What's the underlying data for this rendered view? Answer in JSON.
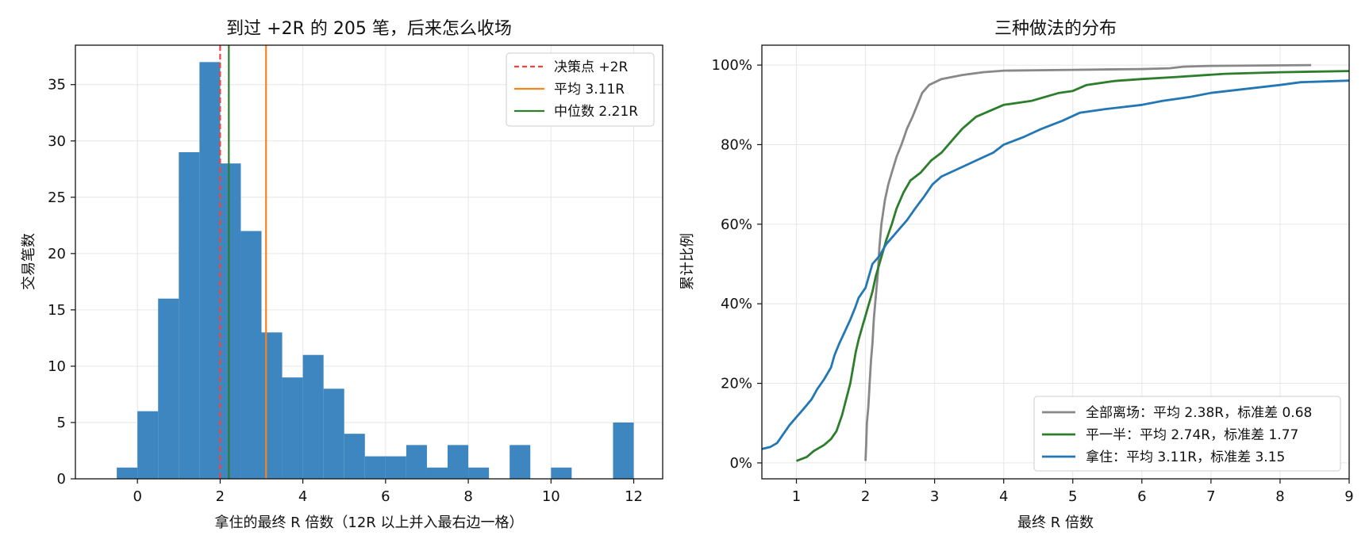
{
  "chart_data": [
    {
      "type": "bar",
      "title": "到过 +2R 的 205 笔，后来怎么收场",
      "xlabel": "拿住的最终 R 倍数（12R 以上并入最右边一格）",
      "ylabel": "交易笔数",
      "xlim": [
        -1.5,
        12.7
      ],
      "ylim": [
        0,
        38.5
      ],
      "xticks": [
        0,
        2,
        4,
        6,
        8,
        10,
        12
      ],
      "yticks": [
        0,
        5,
        10,
        15,
        20,
        25,
        30,
        35
      ],
      "bin_width": 0.5,
      "bin_starts": [
        -0.5,
        0,
        0.5,
        1,
        1.5,
        2,
        2.5,
        3,
        3.5,
        4,
        4.5,
        5,
        5.5,
        6,
        6.5,
        7,
        7.5,
        8,
        8.5,
        9,
        9.5,
        10,
        10.5,
        11,
        11.5
      ],
      "values": [
        1,
        6,
        16,
        29,
        37,
        28,
        22,
        13,
        9,
        11,
        8,
        4,
        2,
        2,
        3,
        1,
        3,
        1,
        0,
        3,
        0,
        1,
        0,
        0,
        5
      ],
      "bar_color": "#3e86c0",
      "vlines": [
        {
          "label": "决策点 +2R",
          "x": 2.0,
          "color": "#ef4444",
          "dashed": true
        },
        {
          "label": "平均 3.11R",
          "x": 3.11,
          "color": "#f5831f",
          "dashed": false
        },
        {
          "label": "中位数 2.21R",
          "x": 2.21,
          "color": "#2c7d2c",
          "dashed": false
        }
      ],
      "grid": true,
      "legend": "top-right"
    },
    {
      "type": "line",
      "title": "三种做法的分布",
      "xlabel": "最终 R 倍数",
      "ylabel": "累计比例",
      "xlim": [
        0.5,
        9
      ],
      "ylim": [
        -4,
        105
      ],
      "xticks": [
        1,
        2,
        3,
        4,
        5,
        6,
        7,
        8,
        9
      ],
      "yticks": [
        0,
        20,
        40,
        60,
        80,
        100
      ],
      "ytick_labels": [
        "0%",
        "20%",
        "40%",
        "60%",
        "80%",
        "100%"
      ],
      "grid": true,
      "legend": "bottom-right",
      "series": [
        {
          "name": "全部离场：平均 2.38R，标准差 0.68",
          "color": "#888888",
          "points": [
            [
              2.0,
              0.5
            ],
            [
              2.01,
              5
            ],
            [
              2.02,
              10
            ],
            [
              2.04,
              14
            ],
            [
              2.06,
              20
            ],
            [
              2.08,
              26
            ],
            [
              2.1,
              30
            ],
            [
              2.12,
              36
            ],
            [
              2.15,
              42
            ],
            [
              2.18,
              48
            ],
            [
              2.2,
              54
            ],
            [
              2.23,
              60
            ],
            [
              2.28,
              66
            ],
            [
              2.33,
              70
            ],
            [
              2.38,
              73
            ],
            [
              2.45,
              77
            ],
            [
              2.52,
              80
            ],
            [
              2.6,
              84
            ],
            [
              2.68,
              87
            ],
            [
              2.75,
              90
            ],
            [
              2.82,
              93
            ],
            [
              2.92,
              95
            ],
            [
              3.1,
              96.5
            ],
            [
              3.4,
              97.5
            ],
            [
              3.7,
              98.2
            ],
            [
              4.0,
              98.6
            ],
            [
              5.0,
              98.8
            ],
            [
              6.0,
              99.0
            ],
            [
              6.4,
              99.2
            ],
            [
              6.6,
              99.6
            ],
            [
              7.0,
              99.8
            ],
            [
              8.45,
              100
            ]
          ]
        },
        {
          "name": "平一半：平均 2.74R，标准差 1.77",
          "color": "#2c7d2c",
          "points": [
            [
              1.0,
              0.5
            ],
            [
              1.15,
              1.5
            ],
            [
              1.25,
              3
            ],
            [
              1.4,
              4.5
            ],
            [
              1.5,
              6
            ],
            [
              1.58,
              8
            ],
            [
              1.66,
              12
            ],
            [
              1.72,
              16
            ],
            [
              1.78,
              20
            ],
            [
              1.82,
              24
            ],
            [
              1.86,
              28
            ],
            [
              1.9,
              31
            ],
            [
              1.95,
              34
            ],
            [
              2.0,
              37
            ],
            [
              2.05,
              40
            ],
            [
              2.1,
              43
            ],
            [
              2.15,
              47
            ],
            [
              2.2,
              50
            ],
            [
              2.25,
              53
            ],
            [
              2.3,
              56
            ],
            [
              2.38,
              60
            ],
            [
              2.45,
              64
            ],
            [
              2.55,
              68
            ],
            [
              2.65,
              71
            ],
            [
              2.8,
              73
            ],
            [
              2.95,
              76
            ],
            [
              3.1,
              78
            ],
            [
              3.25,
              81
            ],
            [
              3.4,
              84
            ],
            [
              3.6,
              87
            ],
            [
              3.8,
              88.5
            ],
            [
              4.0,
              90
            ],
            [
              4.4,
              91
            ],
            [
              4.8,
              93
            ],
            [
              5.0,
              93.5
            ],
            [
              5.2,
              95
            ],
            [
              5.6,
              96
            ],
            [
              6.0,
              96.5
            ],
            [
              6.5,
              97
            ],
            [
              7.2,
              97.8
            ],
            [
              8.0,
              98.2
            ],
            [
              9.0,
              98.5
            ]
          ]
        },
        {
          "name": "拿住：平均 3.11R，标准差 3.15",
          "color": "#2377b4",
          "points": [
            [
              0.5,
              3.5
            ],
            [
              0.62,
              4
            ],
            [
              0.72,
              5
            ],
            [
              0.8,
              7
            ],
            [
              0.9,
              9.5
            ],
            [
              1.0,
              11.5
            ],
            [
              1.1,
              13.5
            ],
            [
              1.22,
              16
            ],
            [
              1.3,
              18.5
            ],
            [
              1.4,
              21
            ],
            [
              1.5,
              24
            ],
            [
              1.55,
              27
            ],
            [
              1.62,
              30
            ],
            [
              1.7,
              33
            ],
            [
              1.78,
              36
            ],
            [
              1.85,
              39
            ],
            [
              1.9,
              41.5
            ],
            [
              2.0,
              44
            ],
            [
              2.05,
              47
            ],
            [
              2.1,
              50
            ],
            [
              2.2,
              52
            ],
            [
              2.3,
              55
            ],
            [
              2.4,
              57
            ],
            [
              2.5,
              59
            ],
            [
              2.6,
              61
            ],
            [
              2.72,
              64
            ],
            [
              2.85,
              67
            ],
            [
              2.97,
              70
            ],
            [
              3.1,
              72
            ],
            [
              3.35,
              74
            ],
            [
              3.6,
              76
            ],
            [
              3.85,
              78
            ],
            [
              4.0,
              80
            ],
            [
              4.3,
              82
            ],
            [
              4.55,
              84
            ],
            [
              4.85,
              86
            ],
            [
              5.1,
              88
            ],
            [
              5.5,
              89
            ],
            [
              6.0,
              90
            ],
            [
              6.3,
              91
            ],
            [
              6.7,
              92
            ],
            [
              7.0,
              93
            ],
            [
              7.5,
              94
            ],
            [
              8.0,
              95
            ],
            [
              8.3,
              95.7
            ],
            [
              9.0,
              96.1
            ]
          ]
        }
      ]
    }
  ]
}
